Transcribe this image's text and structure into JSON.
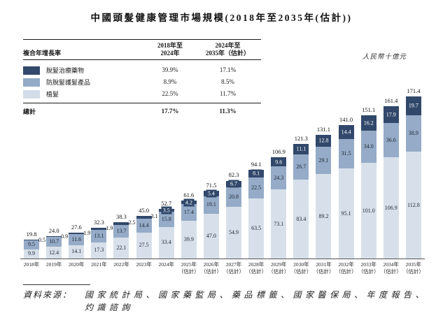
{
  "title": "中國頭髮健康管理市場規模(2018年至2035年(估計))",
  "unit_label": "人民幣十億元",
  "cagr_table": {
    "header": {
      "label": "複合年增長率",
      "col1_line1": "2018年至",
      "col1_line2": "2024年",
      "col2_line1": "2024年至",
      "col2_line2": "2035年（估計）"
    },
    "rows": [
      {
        "label": "脫髮治療藥物",
        "cagr_2018_2024": "39.9%",
        "cagr_2024_2035": "17.1%",
        "color": "#33496d"
      },
      {
        "label": "防脫髮護髮產品",
        "cagr_2018_2024": "8.9%",
        "cagr_2024_2035": "8.5%",
        "color": "#94aac7"
      },
      {
        "label": "植髮",
        "cagr_2018_2024": "22.5%",
        "cagr_2024_2035": "11.7%",
        "color": "#d3dde9"
      }
    ],
    "total": {
      "label": "總計",
      "cagr_2018_2024": "17.7%",
      "cagr_2024_2035": "11.3%"
    }
  },
  "chart_data": {
    "type": "bar",
    "stacked": true,
    "title": "中國頭髮健康管理市場規模(2018年至2035年(估計))",
    "ylabel": "人民幣十億元",
    "ylim": [
      0,
      180
    ],
    "grid": false,
    "legend_position": "top-left-table",
    "categories": [
      "2018年",
      "2019年",
      "2020年",
      "2021年",
      "2022年",
      "2023年",
      "2024年",
      "2025年",
      "2026年",
      "2027年",
      "2028年",
      "2029年",
      "2030年",
      "2031年",
      "2032年",
      "2033年",
      "2034年",
      "2035年"
    ],
    "estimate_label": "（估計）",
    "estimate_from_index": 7,
    "dark_label_outside_count": 6,
    "series": [
      {
        "name": "植髮",
        "color": "#d7e0ea",
        "values": [
          9.9,
          12.4,
          14.1,
          17.3,
          22.1,
          27.5,
          33.4,
          39.9,
          47.0,
          54.9,
          63.5,
          73.1,
          83.4,
          89.2,
          95.1,
          101.0,
          106.9,
          112.8
        ]
      },
      {
        "name": "防脫髮護髮產品",
        "color": "#95abc7",
        "values": [
          9.5,
          10.7,
          11.6,
          13.1,
          13.7,
          14.4,
          15.8,
          17.4,
          19.1,
          20.8,
          22.5,
          24.3,
          26.7,
          29.1,
          31.5,
          34.0,
          36.6,
          38.9
        ]
      },
      {
        "name": "脫髮治療藥物",
        "color": "#31486b",
        "values": [
          0.5,
          0.9,
          1.9,
          1.9,
          2.5,
          3.1,
          3.5,
          4.2,
          5.4,
          6.7,
          8.1,
          9.6,
          11.1,
          12.8,
          14.4,
          16.2,
          17.9,
          19.7
        ]
      }
    ],
    "totals": [
      19.8,
      24.0,
      27.6,
      32.3,
      38.3,
      45.0,
      52.7,
      61.6,
      71.5,
      82.3,
      94.1,
      106.9,
      121.3,
      131.1,
      141.0,
      151.1,
      161.4,
      171.4
    ]
  },
  "source": {
    "prefix": "資料來源：",
    "text": "國家統計局、國家藥監局、藥品標籤、國家醫保局、年度報告、灼識諮詢"
  }
}
